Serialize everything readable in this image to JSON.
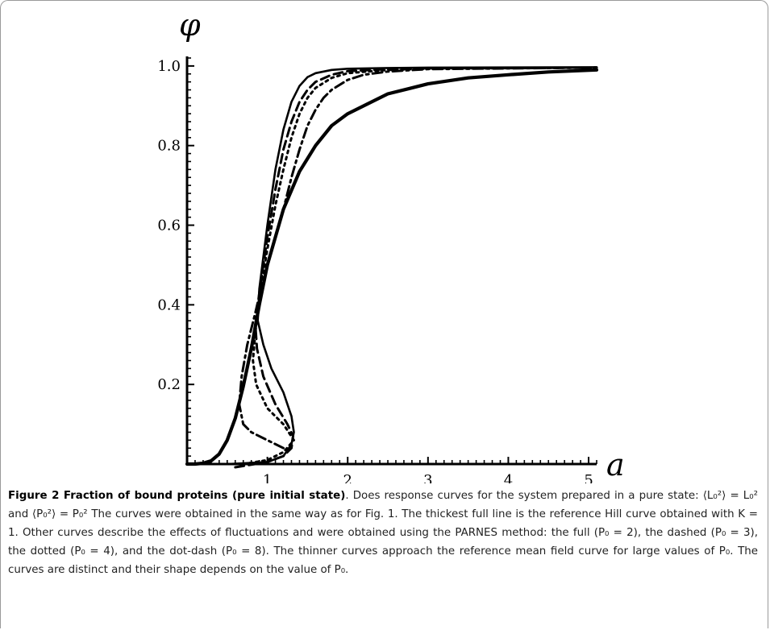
{
  "caption": {
    "title": "Figure 2 Fraction of bound proteins (pure initial state)",
    "text": ". Does response curves for the system prepared in a pure state: ⟨L₀²⟩ = L₀² and ⟨P₀²⟩ = P₀² The curves were obtained in the same way as for Fig. 1. The thickest full line is the reference Hill curve obtained with K = 1. Other curves describe the effects of fluctuations and were obtained using the PARNES method: the full (P₀ = 2), the dashed (P₀ = 3), the dotted (P₀ = 4), and the dot-dash (P₀ = 8). The thinner curves approach the reference mean field curve for large values of P₀. The curves are distinct and their shape depends on the value of P₀."
  },
  "chart_data": {
    "type": "line",
    "title": "",
    "xlabel": "a",
    "ylabel": "φ",
    "xlim": [
      0,
      5.1
    ],
    "ylim": [
      0,
      1.02
    ],
    "x_ticks": [
      "1",
      "2",
      "3",
      "4",
      "5"
    ],
    "y_ticks": [
      "0.2",
      "0.4",
      "0.6",
      "0.8",
      "1.0"
    ],
    "grid": false,
    "legend": "none",
    "series": [
      {
        "style": "thick-solid",
        "x": [
          0,
          0.1,
          0.2,
          0.3,
          0.4,
          0.5,
          0.6,
          0.7,
          0.8,
          0.9,
          1.0,
          1.2,
          1.4,
          1.6,
          1.8,
          2.0,
          2.5,
          3.0,
          3.5,
          4.0,
          4.5,
          5.1
        ],
        "y": [
          0,
          0.0,
          0.002,
          0.008,
          0.025,
          0.06,
          0.115,
          0.195,
          0.29,
          0.4,
          0.5,
          0.64,
          0.735,
          0.8,
          0.85,
          0.88,
          0.93,
          0.955,
          0.97,
          0.978,
          0.985,
          0.99
        ]
      },
      {
        "style": "thin-solid",
        "x": [
          0.5,
          1.0,
          1.2,
          1.3,
          1.33,
          1.3,
          1.2,
          1.05,
          0.95,
          0.88,
          0.9,
          1.0,
          1.1,
          1.2,
          1.3,
          1.4,
          1.5,
          1.6,
          1.8,
          2.0,
          2.5,
          3.0,
          5.1
        ],
        "y": [
          0.0,
          0.005,
          0.02,
          0.05,
          0.08,
          0.12,
          0.18,
          0.24,
          0.3,
          0.36,
          0.44,
          0.6,
          0.74,
          0.84,
          0.91,
          0.95,
          0.972,
          0.982,
          0.99,
          0.993,
          0.995,
          0.996,
          0.997
        ]
      },
      {
        "style": "dashed",
        "x": [
          0.6,
          1.0,
          1.2,
          1.3,
          1.32,
          1.25,
          1.1,
          0.95,
          0.87,
          0.85,
          0.9,
          1.0,
          1.1,
          1.2,
          1.3,
          1.4,
          1.5,
          1.6,
          1.8,
          2.0,
          2.5,
          3.0,
          5.1
        ],
        "y": [
          -0.008,
          0.005,
          0.02,
          0.04,
          0.07,
          0.1,
          0.15,
          0.22,
          0.29,
          0.35,
          0.43,
          0.57,
          0.69,
          0.79,
          0.86,
          0.91,
          0.94,
          0.96,
          0.978,
          0.987,
          0.992,
          0.994,
          0.996
        ]
      },
      {
        "style": "dotted",
        "x": [
          0.7,
          1.0,
          1.2,
          1.33,
          1.2,
          1.0,
          0.86,
          0.82,
          0.85,
          0.9,
          1.0,
          1.1,
          1.2,
          1.3,
          1.4,
          1.5,
          1.6,
          1.8,
          2.0,
          2.5,
          3.0,
          5.1
        ],
        "y": [
          0.0,
          0.01,
          0.03,
          0.06,
          0.1,
          0.14,
          0.2,
          0.26,
          0.33,
          0.42,
          0.54,
          0.65,
          0.74,
          0.82,
          0.88,
          0.92,
          0.945,
          0.97,
          0.982,
          0.99,
          0.993,
          0.996
        ]
      },
      {
        "style": "dot-dash",
        "x": [
          1.2,
          1.0,
          0.8,
          0.7,
          0.65,
          0.68,
          0.75,
          0.85,
          0.92,
          1.0,
          1.1,
          1.2,
          1.3,
          1.4,
          1.5,
          1.6,
          1.7,
          1.8,
          2.0,
          2.2,
          2.5,
          3.0,
          5.1
        ],
        "y": [
          0.04,
          0.06,
          0.08,
          0.1,
          0.15,
          0.22,
          0.3,
          0.38,
          0.44,
          0.5,
          0.57,
          0.64,
          0.72,
          0.79,
          0.85,
          0.89,
          0.92,
          0.94,
          0.965,
          0.978,
          0.986,
          0.992,
          0.996
        ]
      }
    ]
  }
}
